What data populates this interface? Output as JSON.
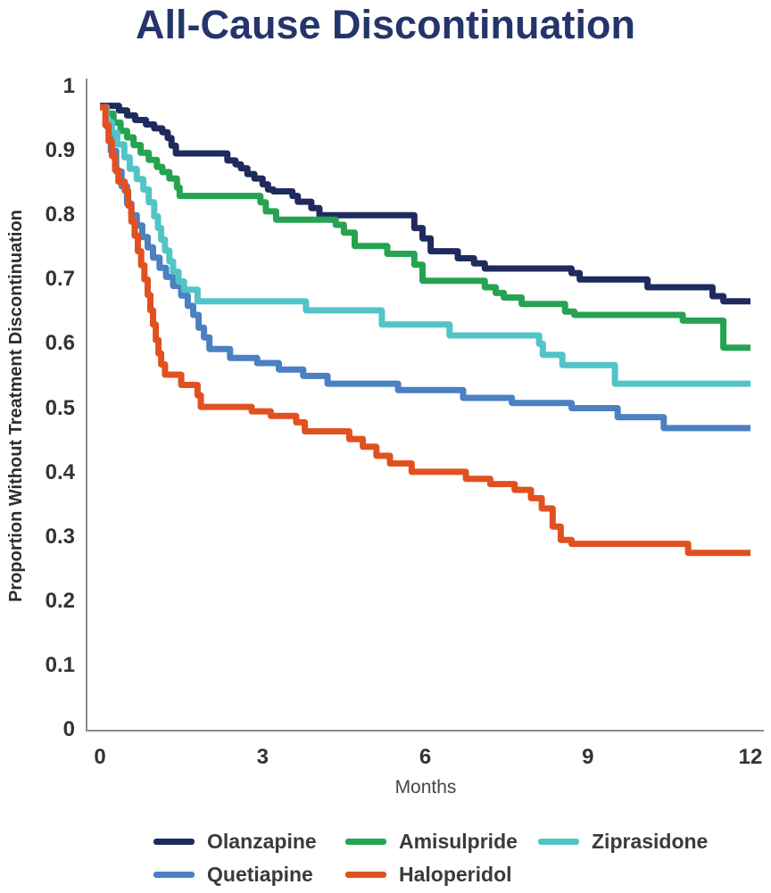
{
  "header": {
    "title": "All-Cause Discontinuation",
    "title_color": "#24356b"
  },
  "axes": {
    "axis_color": "#8c8c8c",
    "tick_text_color": "#333333"
  },
  "chart_data": {
    "type": "line",
    "style": "kaplan-meier-step-curves",
    "title": "All-Cause Discontinuation",
    "xlabel": "Months",
    "ylabel": "Proportion Without Treatment Discontinuation",
    "xlim": [
      0,
      12
    ],
    "ylim": [
      0,
      1
    ],
    "xticks": [
      0,
      3,
      6,
      9,
      12
    ],
    "xtick_labels": [
      "0",
      "3",
      "6",
      "9",
      "12"
    ],
    "yticks": [
      1,
      0.9,
      0.8,
      0.7,
      0.6,
      0.5,
      0.4,
      0.3,
      0.2,
      0.1,
      0
    ],
    "ytick_labels": [
      "1",
      "0.9",
      "0.8",
      "0.7",
      "0.6",
      "0.5",
      "0.4",
      "0.3",
      "0.2",
      "0.1",
      "0"
    ],
    "grid": false,
    "legend_position": "bottom",
    "series": [
      {
        "name": "Olanzapine",
        "color": "#1f2b5e",
        "points": [
          [
            0,
            0.97
          ],
          [
            0.35,
            0.963
          ],
          [
            0.5,
            0.955
          ],
          [
            0.65,
            0.948
          ],
          [
            0.85,
            0.941
          ],
          [
            1.0,
            0.935
          ],
          [
            1.15,
            0.929
          ],
          [
            1.25,
            0.92
          ],
          [
            1.32,
            0.908
          ],
          [
            1.4,
            0.896
          ],
          [
            2.35,
            0.885
          ],
          [
            2.5,
            0.879
          ],
          [
            2.6,
            0.873
          ],
          [
            2.72,
            0.864
          ],
          [
            2.85,
            0.857
          ],
          [
            3.0,
            0.848
          ],
          [
            3.1,
            0.84
          ],
          [
            3.2,
            0.837
          ],
          [
            3.55,
            0.83
          ],
          [
            3.65,
            0.821
          ],
          [
            3.9,
            0.811
          ],
          [
            4.05,
            0.8
          ],
          [
            5.8,
            0.78
          ],
          [
            5.95,
            0.764
          ],
          [
            6.1,
            0.744
          ],
          [
            6.6,
            0.733
          ],
          [
            6.9,
            0.725
          ],
          [
            7.1,
            0.717
          ],
          [
            8.7,
            0.71
          ],
          [
            8.85,
            0.7
          ],
          [
            10.1,
            0.688
          ],
          [
            11.3,
            0.674
          ],
          [
            11.5,
            0.666
          ]
        ]
      },
      {
        "name": "Amisulpride",
        "color": "#25a351",
        "points": [
          [
            0,
            0.968
          ],
          [
            0.12,
            0.958
          ],
          [
            0.25,
            0.944
          ],
          [
            0.38,
            0.931
          ],
          [
            0.5,
            0.921
          ],
          [
            0.62,
            0.909
          ],
          [
            0.75,
            0.897
          ],
          [
            0.9,
            0.886
          ],
          [
            1.05,
            0.875
          ],
          [
            1.15,
            0.867
          ],
          [
            1.28,
            0.857
          ],
          [
            1.42,
            0.843
          ],
          [
            1.47,
            0.83
          ],
          [
            2.96,
            0.82
          ],
          [
            3.06,
            0.806
          ],
          [
            3.25,
            0.793
          ],
          [
            4.35,
            0.785
          ],
          [
            4.5,
            0.773
          ],
          [
            4.7,
            0.752
          ],
          [
            5.3,
            0.74
          ],
          [
            5.8,
            0.723
          ],
          [
            5.95,
            0.698
          ],
          [
            7.1,
            0.688
          ],
          [
            7.3,
            0.679
          ],
          [
            7.45,
            0.672
          ],
          [
            7.78,
            0.662
          ],
          [
            8.58,
            0.65
          ],
          [
            8.75,
            0.645
          ],
          [
            10.75,
            0.636
          ],
          [
            11.5,
            0.594
          ]
        ]
      },
      {
        "name": "Ziprasidone",
        "color": "#52c4c8",
        "points": [
          [
            0,
            0.968
          ],
          [
            0.12,
            0.945
          ],
          [
            0.22,
            0.928
          ],
          [
            0.32,
            0.91
          ],
          [
            0.45,
            0.89
          ],
          [
            0.55,
            0.872
          ],
          [
            0.68,
            0.856
          ],
          [
            0.8,
            0.84
          ],
          [
            0.9,
            0.82
          ],
          [
            1.0,
            0.798
          ],
          [
            1.07,
            0.78
          ],
          [
            1.13,
            0.762
          ],
          [
            1.2,
            0.745
          ],
          [
            1.28,
            0.728
          ],
          [
            1.35,
            0.712
          ],
          [
            1.45,
            0.697
          ],
          [
            1.55,
            0.684
          ],
          [
            1.8,
            0.666
          ],
          [
            3.8,
            0.652
          ],
          [
            5.2,
            0.63
          ],
          [
            6.45,
            0.613
          ],
          [
            8.1,
            0.6
          ],
          [
            8.17,
            0.583
          ],
          [
            8.53,
            0.567
          ],
          [
            9.5,
            0.538
          ]
        ]
      },
      {
        "name": "Quetiapine",
        "color": "#4b80c2",
        "points": [
          [
            0,
            0.968
          ],
          [
            0.12,
            0.938
          ],
          [
            0.2,
            0.9
          ],
          [
            0.3,
            0.868
          ],
          [
            0.4,
            0.845
          ],
          [
            0.5,
            0.818
          ],
          [
            0.58,
            0.8
          ],
          [
            0.68,
            0.784
          ],
          [
            0.78,
            0.766
          ],
          [
            0.88,
            0.75
          ],
          [
            0.98,
            0.734
          ],
          [
            1.1,
            0.718
          ],
          [
            1.22,
            0.704
          ],
          [
            1.35,
            0.69
          ],
          [
            1.5,
            0.675
          ],
          [
            1.62,
            0.659
          ],
          [
            1.72,
            0.645
          ],
          [
            1.82,
            0.625
          ],
          [
            1.92,
            0.61
          ],
          [
            2.02,
            0.592
          ],
          [
            2.4,
            0.578
          ],
          [
            2.9,
            0.57
          ],
          [
            3.3,
            0.56
          ],
          [
            3.75,
            0.55
          ],
          [
            4.2,
            0.538
          ],
          [
            5.5,
            0.528
          ],
          [
            6.7,
            0.516
          ],
          [
            7.6,
            0.508
          ],
          [
            8.7,
            0.5
          ],
          [
            9.55,
            0.486
          ],
          [
            10.4,
            0.469
          ]
        ]
      },
      {
        "name": "Haloperidol",
        "color": "#e0511f",
        "points": [
          [
            0,
            0.968
          ],
          [
            0.1,
            0.94
          ],
          [
            0.16,
            0.915
          ],
          [
            0.22,
            0.892
          ],
          [
            0.28,
            0.87
          ],
          [
            0.34,
            0.852
          ],
          [
            0.46,
            0.838
          ],
          [
            0.52,
            0.815
          ],
          [
            0.58,
            0.79
          ],
          [
            0.64,
            0.768
          ],
          [
            0.7,
            0.744
          ],
          [
            0.76,
            0.722
          ],
          [
            0.82,
            0.7
          ],
          [
            0.88,
            0.676
          ],
          [
            0.93,
            0.652
          ],
          [
            0.98,
            0.63
          ],
          [
            1.03,
            0.606
          ],
          [
            1.08,
            0.585
          ],
          [
            1.13,
            0.568
          ],
          [
            1.2,
            0.552
          ],
          [
            1.5,
            0.536
          ],
          [
            1.8,
            0.52
          ],
          [
            1.86,
            0.502
          ],
          [
            2.8,
            0.495
          ],
          [
            3.15,
            0.488
          ],
          [
            3.62,
            0.478
          ],
          [
            3.78,
            0.464
          ],
          [
            4.6,
            0.452
          ],
          [
            4.85,
            0.44
          ],
          [
            5.1,
            0.426
          ],
          [
            5.35,
            0.414
          ],
          [
            5.75,
            0.401
          ],
          [
            6.75,
            0.39
          ],
          [
            7.2,
            0.382
          ],
          [
            7.65,
            0.373
          ],
          [
            7.95,
            0.36
          ],
          [
            8.15,
            0.344
          ],
          [
            8.35,
            0.316
          ],
          [
            8.5,
            0.295
          ],
          [
            8.7,
            0.289
          ],
          [
            10.85,
            0.275
          ]
        ]
      }
    ]
  }
}
